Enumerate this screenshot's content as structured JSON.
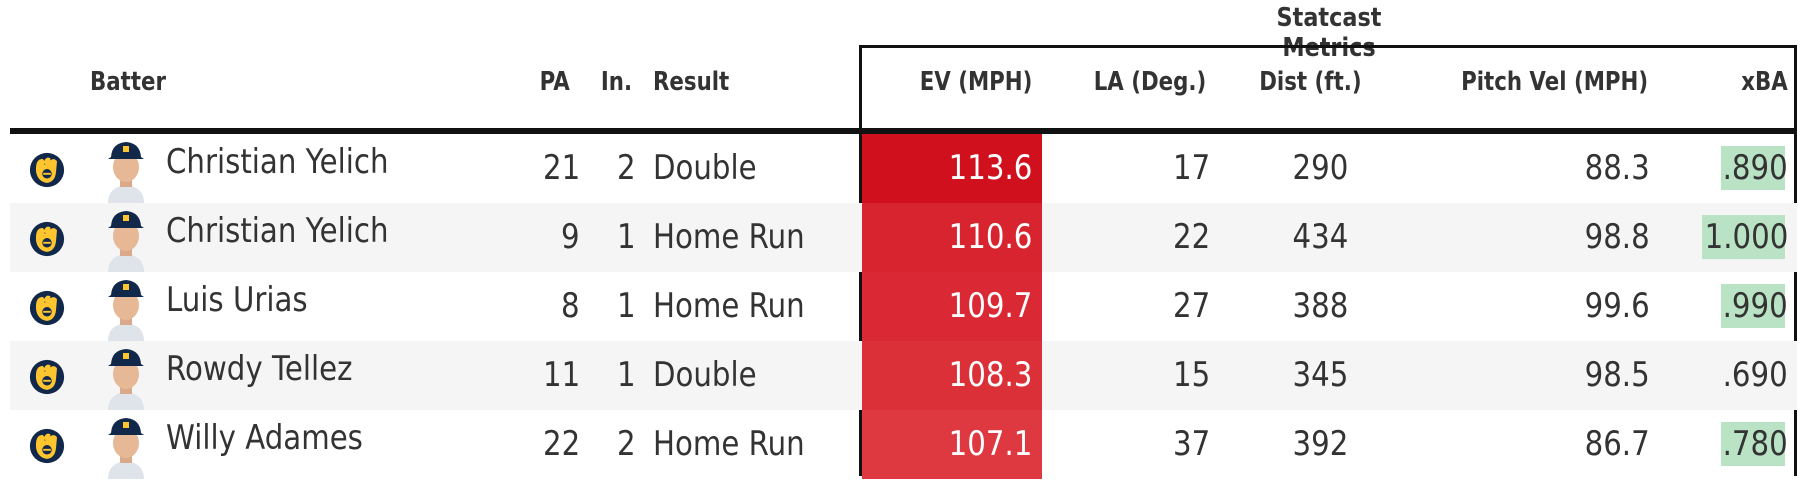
{
  "group_title": "Statcast Metrics",
  "headers": {
    "batter": "Batter",
    "pa": "PA",
    "inning": "In.",
    "result": "Result",
    "ev": "EV (MPH)",
    "la": "LA (Deg.)",
    "dist": "Dist (ft.)",
    "pitch_vel": "Pitch Vel (MPH)",
    "xba": "xBA"
  },
  "colors": {
    "team_navy": "#12284b",
    "team_gold": "#ffc52f",
    "ev_high": "#d0101c",
    "xba_highlight": "#b9e3c4"
  },
  "rows": [
    {
      "batter": "Christian Yelich",
      "pa": "21",
      "inning": "2",
      "result": "Double",
      "ev": "113.6",
      "la": "17",
      "dist": "290",
      "pitch_vel": "88.3",
      "xba": ".890",
      "ev_color": "#d0101c",
      "xba_highlight": true,
      "avatar": "batter-headshot"
    },
    {
      "batter": "Christian Yelich",
      "pa": "9",
      "inning": "1",
      "result": "Home Run",
      "ev": "110.6",
      "la": "22",
      "dist": "434",
      "pitch_vel": "98.8",
      "xba": "1.000",
      "ev_color": "#d8242e",
      "xba_highlight": true,
      "avatar": "batter-headshot"
    },
    {
      "batter": "Luis Urias",
      "pa": "8",
      "inning": "1",
      "result": "Home Run",
      "ev": "109.7",
      "la": "27",
      "dist": "388",
      "pitch_vel": "99.6",
      "xba": ".990",
      "ev_color": "#da2934",
      "xba_highlight": true,
      "avatar": "batter-headshot"
    },
    {
      "batter": "Rowdy Tellez",
      "pa": "11",
      "inning": "1",
      "result": "Double",
      "ev": "108.3",
      "la": "15",
      "dist": "345",
      "pitch_vel": "98.5",
      "xba": ".690",
      "ev_color": "#dc3039",
      "xba_highlight": false,
      "avatar": "batter-headshot"
    },
    {
      "batter": "Willy Adames",
      "pa": "22",
      "inning": "2",
      "result": "Home Run",
      "ev": "107.1",
      "la": "37",
      "dist": "392",
      "pitch_vel": "86.7",
      "xba": ".780",
      "ev_color": "#de3841",
      "xba_highlight": true,
      "avatar": "batter-headshot"
    }
  ]
}
